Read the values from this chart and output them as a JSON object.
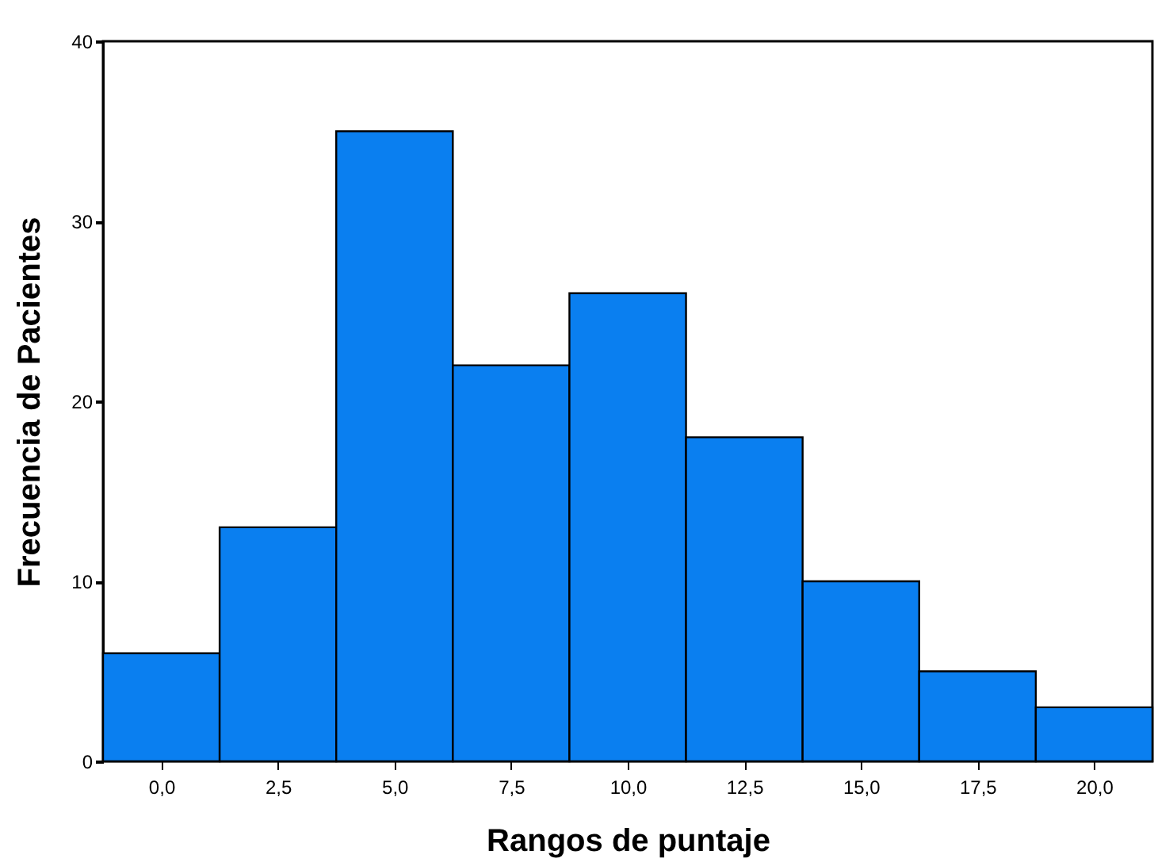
{
  "chart_data": {
    "type": "histogram",
    "xlabel": "Rangos de puntaje",
    "ylabel": "Frecuencia de Pacientes",
    "bins": [
      -1.25,
      1.25,
      3.75,
      6.25,
      8.75,
      11.25,
      13.75,
      16.25,
      18.75,
      21.25
    ],
    "values": [
      6,
      13,
      35,
      22,
      26,
      18,
      10,
      5,
      3
    ],
    "color": "#0a7ff0",
    "xlim": [
      -1.25,
      21.25
    ],
    "xticks": [
      {
        "value": 0,
        "label": "0,0"
      },
      {
        "value": 2.5,
        "label": "2,5"
      },
      {
        "value": 5,
        "label": "5,0"
      },
      {
        "value": 7.5,
        "label": "7,5"
      },
      {
        "value": 10,
        "label": "10,0"
      },
      {
        "value": 12.5,
        "label": "12,5"
      },
      {
        "value": 15,
        "label": "15,0"
      },
      {
        "value": 17.5,
        "label": "17,5"
      },
      {
        "value": 20,
        "label": "20,0"
      }
    ],
    "ylim": [
      0,
      40
    ],
    "yticks": [
      0,
      10,
      20,
      30,
      40
    ],
    "grid": false
  }
}
